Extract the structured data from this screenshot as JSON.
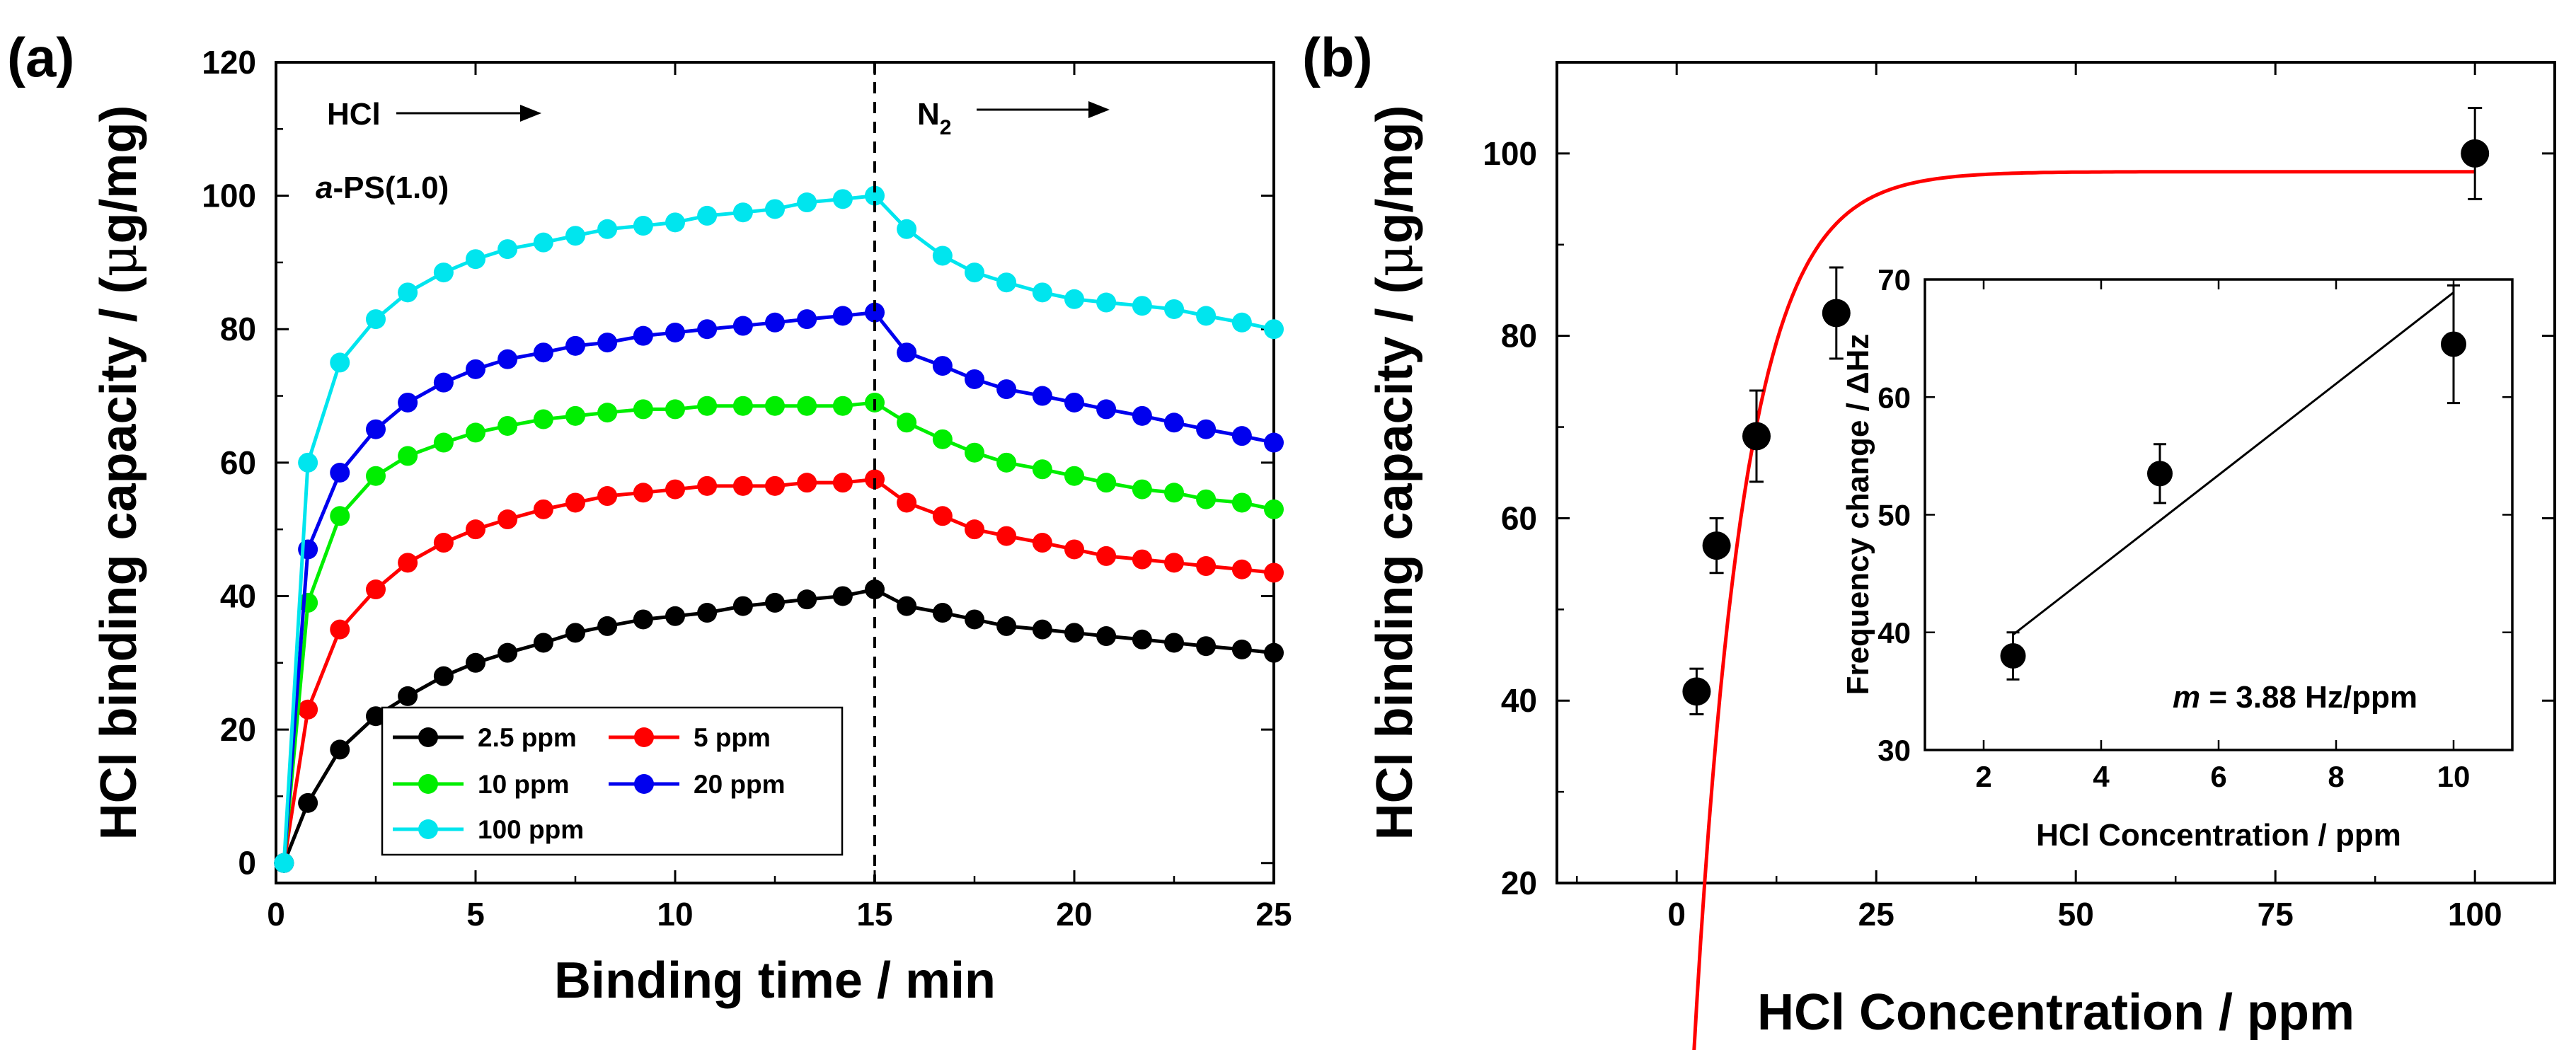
{
  "chart_data": [
    {
      "id": "a",
      "panel_label": "(a)",
      "type": "line",
      "xlabel": "Binding time / min",
      "ylabel_prefix": "HCl binding capacity / (",
      "ylabel_mu": "μ",
      "ylabel_suffix": "g/mg)",
      "xlim": [
        0,
        25
      ],
      "ylim": [
        -3,
        120
      ],
      "xticks": [
        "0",
        "5",
        "10",
        "15",
        "20",
        "25"
      ],
      "yticks": [
        "0",
        "20",
        "40",
        "60",
        "80",
        "100",
        "120"
      ],
      "annotations": {
        "hcl_label": "HCl",
        "n2_label": "N",
        "n2_sub": "2",
        "sample_italic": "a",
        "sample_rest": "-PS(1.0)",
        "switch_time": 15
      },
      "series": [
        {
          "name": "2.5 ppm",
          "color": "#000000",
          "x": [
            0.2,
            0.8,
            1.6,
            2.5,
            3.3,
            4.2,
            5,
            5.8,
            6.7,
            7.5,
            8.3,
            9.2,
            10,
            10.8,
            11.7,
            12.5,
            13.3,
            14.2,
            15,
            15.8,
            16.7,
            17.5,
            18.3,
            19.2,
            20,
            20.8,
            21.7,
            22.5,
            23.3,
            24.2,
            25
          ],
          "values": [
            0,
            9,
            17,
            22,
            25,
            28,
            30,
            31.5,
            33,
            34.5,
            35.5,
            36.5,
            37,
            37.5,
            38.5,
            39,
            39.5,
            40,
            41,
            38.5,
            37.5,
            36.5,
            35.5,
            35,
            34.5,
            34,
            33.5,
            33,
            32.5,
            32,
            31.5
          ]
        },
        {
          "name": "5 ppm",
          "color": "#ff0000",
          "x": [
            0.2,
            0.8,
            1.6,
            2.5,
            3.3,
            4.2,
            5,
            5.8,
            6.7,
            7.5,
            8.3,
            9.2,
            10,
            10.8,
            11.7,
            12.5,
            13.3,
            14.2,
            15,
            15.8,
            16.7,
            17.5,
            18.3,
            19.2,
            20,
            20.8,
            21.7,
            22.5,
            23.3,
            24.2,
            25
          ],
          "values": [
            0,
            23,
            35,
            41,
            45,
            48,
            50,
            51.5,
            53,
            54,
            55,
            55.5,
            56,
            56.5,
            56.5,
            56.5,
            57,
            57,
            57.5,
            54,
            52,
            50,
            49,
            48,
            47,
            46,
            45.5,
            45,
            44.5,
            44,
            43.5
          ]
        },
        {
          "name": "10 ppm",
          "color": "#00ee00",
          "x": [
            0.2,
            0.8,
            1.6,
            2.5,
            3.3,
            4.2,
            5,
            5.8,
            6.7,
            7.5,
            8.3,
            9.2,
            10,
            10.8,
            11.7,
            12.5,
            13.3,
            14.2,
            15,
            15.8,
            16.7,
            17.5,
            18.3,
            19.2,
            20,
            20.8,
            21.7,
            22.5,
            23.3,
            24.2,
            25
          ],
          "values": [
            0,
            39,
            52,
            58,
            61,
            63,
            64.5,
            65.5,
            66.5,
            67,
            67.5,
            68,
            68,
            68.5,
            68.5,
            68.5,
            68.5,
            68.5,
            69,
            66,
            63.5,
            61.5,
            60,
            59,
            58,
            57,
            56,
            55.5,
            54.5,
            54,
            53
          ]
        },
        {
          "name": "20 ppm",
          "color": "#0000ee",
          "x": [
            0.2,
            0.8,
            1.6,
            2.5,
            3.3,
            4.2,
            5,
            5.8,
            6.7,
            7.5,
            8.3,
            9.2,
            10,
            10.8,
            11.7,
            12.5,
            13.3,
            14.2,
            15,
            15.8,
            16.7,
            17.5,
            18.3,
            19.2,
            20,
            20.8,
            21.7,
            22.5,
            23.3,
            24.2,
            25
          ],
          "values": [
            0,
            47,
            58.5,
            65,
            69,
            72,
            74,
            75.5,
            76.5,
            77.5,
            78,
            79,
            79.5,
            80,
            80.5,
            81,
            81.5,
            82,
            82.5,
            76.5,
            74.5,
            72.5,
            71,
            70,
            69,
            68,
            67,
            66,
            65,
            64,
            63
          ]
        },
        {
          "name": "100 ppm",
          "color": "#00e5ee",
          "x": [
            0.2,
            0.8,
            1.6,
            2.5,
            3.3,
            4.2,
            5,
            5.8,
            6.7,
            7.5,
            8.3,
            9.2,
            10,
            10.8,
            11.7,
            12.5,
            13.3,
            14.2,
            15,
            15.8,
            16.7,
            17.5,
            18.3,
            19.2,
            20,
            20.8,
            21.7,
            22.5,
            23.3,
            24.2,
            25
          ],
          "values": [
            0,
            60,
            75,
            81.5,
            85.5,
            88.5,
            90.5,
            92,
            93,
            94,
            95,
            95.5,
            96,
            97,
            97.5,
            98,
            99,
            99.5,
            100,
            95,
            91,
            88.5,
            87,
            85.5,
            84.5,
            84,
            83.5,
            83,
            82,
            81,
            80
          ]
        }
      ]
    },
    {
      "id": "b",
      "panel_label": "(b)",
      "type": "scatter",
      "xlabel": "HCl Concentration / ppm",
      "ylabel_prefix": "HCl binding capacity / (",
      "ylabel_mu": "μ",
      "ylabel_suffix": "g/mg)",
      "xlim": [
        -15,
        110
      ],
      "ylim": [
        20,
        110
      ],
      "xticks": [
        "0",
        "25",
        "50",
        "75",
        "100"
      ],
      "yticks": [
        "20",
        "40",
        "60",
        "80",
        "100"
      ],
      "points": [
        {
          "x": 2.5,
          "y": 41,
          "err": 2.5
        },
        {
          "x": 5,
          "y": 57,
          "err": 3
        },
        {
          "x": 10,
          "y": 69,
          "err": 5
        },
        {
          "x": 20,
          "y": 82.5,
          "err": 5
        },
        {
          "x": 100,
          "y": 100,
          "err": 5
        }
      ],
      "fit": {
        "color": "#ff0000",
        "model": "y = 98 - 136 * exp(-x/6.3)",
        "x_start": 2,
        "x_end": 100
      }
    },
    {
      "id": "b-inset",
      "type": "scatter",
      "xlabel": "HCl Concentration / ppm",
      "ylabel": "Frequency change / ΔHz",
      "xlim": [
        1,
        11
      ],
      "ylim": [
        30,
        70
      ],
      "xticks": [
        "2",
        "4",
        "6",
        "8",
        "10"
      ],
      "yticks": [
        "30",
        "40",
        "50",
        "60",
        "70"
      ],
      "points": [
        {
          "x": 2.5,
          "y": 38,
          "err": 2
        },
        {
          "x": 5,
          "y": 53.5,
          "err": 2.5
        },
        {
          "x": 10,
          "y": 64.5,
          "err": 5
        }
      ],
      "fit": {
        "x": [
          2.5,
          10
        ],
        "y": [
          39.8,
          68.9
        ]
      },
      "slope_italic": "m",
      "slope_text": " =  3.88 Hz/ppm"
    }
  ]
}
